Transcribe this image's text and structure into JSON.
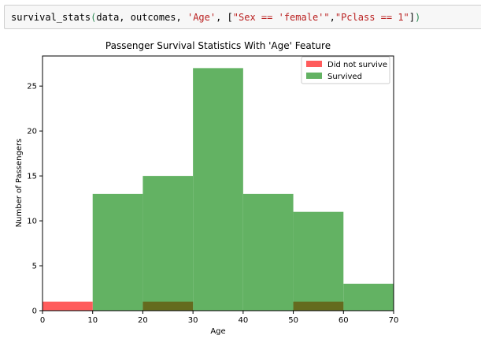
{
  "code_cell": {
    "fn": "survival_stats",
    "open_paren": "(",
    "args_plain": "data, outcomes, ",
    "feature_arg": "'Age'",
    "sep_open": ", [",
    "filter_1": "\"Sex == 'female'\"",
    "filter_sep": ",",
    "filter_2": "\"Pclass == 1\"",
    "close_bracket": "]",
    "close_paren": ")"
  },
  "colors": {
    "did_not_survive": "#ff5c5c",
    "survived": "#63b263",
    "overlap": "#646b1e"
  },
  "chart_data": {
    "type": "bar",
    "title": "Passenger Survival Statistics With 'Age' Feature",
    "xlabel": "Age",
    "ylabel": "Number of Passengers",
    "xlim": [
      0,
      70
    ],
    "ylim": [
      0,
      28.35
    ],
    "xticks": [
      "0",
      "10",
      "20",
      "30",
      "40",
      "50",
      "60",
      "70"
    ],
    "yticks": [
      "0",
      "5",
      "10",
      "15",
      "20",
      "25"
    ],
    "bins": [
      [
        0,
        10
      ],
      [
        10,
        20
      ],
      [
        20,
        30
      ],
      [
        30,
        40
      ],
      [
        40,
        50
      ],
      [
        50,
        60
      ],
      [
        60,
        70
      ]
    ],
    "legend_position": "upper right",
    "series": [
      {
        "name": "Did not survive",
        "values": [
          1,
          0,
          1,
          0,
          0,
          1,
          0
        ]
      },
      {
        "name": "Survived",
        "values": [
          0,
          13,
          15,
          27,
          13,
          11,
          3
        ]
      }
    ]
  }
}
